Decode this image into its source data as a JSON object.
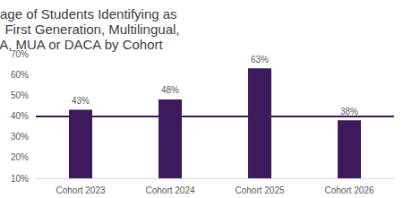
{
  "chart_data": {
    "type": "bar",
    "title": "Percentage of Students Identifying as Veteran, First Generation, Multilingual, HPSA, MUA or DACA by Cohort",
    "categories": [
      "Cohort 2023",
      "Cohort 2024",
      "Cohort 2025",
      "Cohort 2026"
    ],
    "values": [
      43,
      48,
      63,
      38
    ],
    "value_labels": [
      "43%",
      "48%",
      "63%",
      "38%"
    ],
    "color": "#3c1a5b",
    "ylim": [
      10,
      70
    ],
    "yticks": [
      {
        "value": 10,
        "label": "10%"
      },
      {
        "value": 20,
        "label": "20%"
      },
      {
        "value": 30,
        "label": "30%"
      },
      {
        "value": 40,
        "label": "40%"
      },
      {
        "value": 50,
        "label": "50%"
      },
      {
        "value": 60,
        "label": "60%"
      },
      {
        "value": 70,
        "label": "70%"
      }
    ],
    "reference_line": 40,
    "grid": false,
    "data_labels": true
  }
}
